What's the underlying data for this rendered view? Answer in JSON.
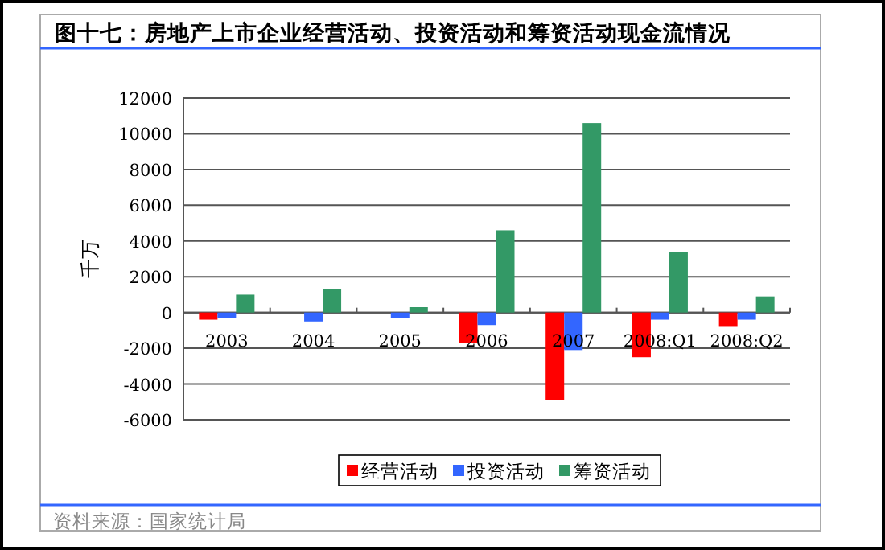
{
  "chart_data": {
    "type": "bar",
    "title": "图十七：房地产上市企业经营活动、投资活动和筹资活动现金流情况",
    "ylabel": "千万",
    "categories": [
      "2003",
      "2004",
      "2005",
      "2006",
      "2007",
      "2008:Q1",
      "2008:Q2"
    ],
    "series": [
      {
        "name": "经营活动",
        "color": "#ff0000",
        "values": [
          -400,
          0,
          0,
          -1700,
          -4900,
          -2500,
          -800
        ]
      },
      {
        "name": "投资活动",
        "color": "#3366ff",
        "values": [
          -300,
          -500,
          -300,
          -700,
          -2100,
          -400,
          -400
        ]
      },
      {
        "name": "筹资活动",
        "color": "#339966",
        "values": [
          1000,
          1300,
          300,
          4600,
          10600,
          3400,
          900
        ]
      }
    ],
    "ylim": [
      -6000,
      12000
    ],
    "yticks": [
      -6000,
      -4000,
      -2000,
      0,
      2000,
      4000,
      6000,
      8000,
      10000,
      12000
    ],
    "grid": "y",
    "legend": "bottom",
    "annotations": [
      "资料来源：国家统计局"
    ]
  }
}
